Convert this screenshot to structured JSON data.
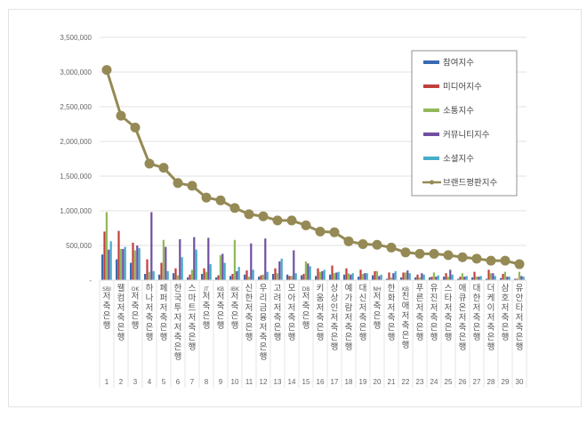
{
  "chart_data": {
    "type": "bar",
    "title": "",
    "xlabel": "",
    "ylabel": "",
    "ylim": [
      0,
      3500000
    ],
    "yticks": [
      "-",
      "500,000",
      "1,000,000",
      "1,500,000",
      "2,000,000",
      "2,500,000",
      "3,000,000",
      "3,500,000"
    ],
    "ytick_values": [
      0,
      500000,
      1000000,
      1500000,
      2000000,
      2500000,
      3000000,
      3500000
    ],
    "grid": true,
    "legend_position": "right-inside-top",
    "ranks": [
      "1",
      "2",
      "3",
      "4",
      "5",
      "6",
      "7",
      "8",
      "9",
      "10",
      "11",
      "12",
      "13",
      "14",
      "15",
      "16",
      "17",
      "18",
      "19",
      "20",
      "21",
      "22",
      "23",
      "24",
      "25",
      "26",
      "27",
      "28",
      "29",
      "30"
    ],
    "categories": [
      "SBI저축은행",
      "웰컴저축은행",
      "OK저축은행",
      "하나저축은행",
      "페퍼저축은행",
      "한국투자저축은행",
      "스마트저축은행",
      "JT저축은행",
      "KB저축은행",
      "IBK저축은행",
      "신한저축은행",
      "우리금융저축은행",
      "고려저축은행",
      "모아저축은행",
      "DB저축은행",
      "키움저축은행",
      "상상인저축은행",
      "예가람저축은행",
      "대신저축은행",
      "NH저축은행",
      "한화저축은행",
      "KB친애저축은행",
      "푸른저축은행",
      "유진저축은행",
      "스타저축은행",
      "애큐온저축은행",
      "대한저축은행",
      "더케이저축은행",
      "삼호저축은행",
      "유안타저축은행"
    ],
    "series": [
      {
        "name": "참여지수",
        "color": "#3a6ab0",
        "kind": "bar",
        "values": [
          370000,
          300000,
          250000,
          90000,
          80000,
          100000,
          40000,
          90000,
          40000,
          60000,
          80000,
          50000,
          90000,
          80000,
          70000,
          60000,
          80000,
          80000,
          50000,
          70000,
          20000,
          40000,
          40000,
          40000,
          50000,
          20000,
          40000,
          20000,
          30000,
          20000
        ]
      },
      {
        "name": "미디어지수",
        "color": "#c0403c",
        "kind": "bar",
        "values": [
          700000,
          710000,
          540000,
          300000,
          250000,
          170000,
          80000,
          170000,
          70000,
          90000,
          140000,
          70000,
          170000,
          60000,
          90000,
          170000,
          210000,
          170000,
          150000,
          130000,
          110000,
          110000,
          80000,
          50000,
          100000,
          50000,
          120000,
          150000,
          90000,
          20000
        ]
      },
      {
        "name": "소통지수",
        "color": "#93b85a",
        "kind": "bar",
        "values": [
          980000,
          450000,
          430000,
          120000,
          580000,
          70000,
          150000,
          120000,
          360000,
          580000,
          50000,
          80000,
          100000,
          60000,
          270000,
          120000,
          100000,
          100000,
          90000,
          130000,
          40000,
          110000,
          40000,
          110000,
          50000,
          100000,
          50000,
          100000,
          120000,
          120000
        ]
      },
      {
        "name": "커뮤니티지수",
        "color": "#7050a0",
        "kind": "bar",
        "values": [
          440000,
          450000,
          500000,
          980000,
          480000,
          590000,
          620000,
          610000,
          380000,
          130000,
          530000,
          600000,
          270000,
          430000,
          240000,
          130000,
          110000,
          80000,
          100000,
          60000,
          100000,
          140000,
          100000,
          50000,
          150000,
          50000,
          50000,
          100000,
          50000,
          60000
        ]
      },
      {
        "name": "소셜지수",
        "color": "#45aecb",
        "kind": "bar",
        "values": [
          560000,
          480000,
          460000,
          130000,
          130000,
          330000,
          440000,
          230000,
          250000,
          190000,
          150000,
          120000,
          310000,
          100000,
          200000,
          150000,
          120000,
          100000,
          100000,
          80000,
          130000,
          100000,
          80000,
          70000,
          80000,
          60000,
          60000,
          60000,
          50000,
          50000
        ]
      },
      {
        "name": "브랜드평판지수",
        "color": "#958a55",
        "kind": "line",
        "values": [
          3030000,
          2370000,
          2200000,
          1680000,
          1620000,
          1400000,
          1360000,
          1190000,
          1150000,
          1040000,
          950000,
          920000,
          860000,
          860000,
          790000,
          700000,
          690000,
          560000,
          520000,
          510000,
          470000,
          400000,
          380000,
          380000,
          360000,
          330000,
          310000,
          280000,
          280000,
          230000
        ]
      }
    ]
  },
  "legend": {
    "items": [
      {
        "label": "참여지수",
        "color": "#3a6ab0",
        "type": "bar"
      },
      {
        "label": "미디어지수",
        "color": "#c0403c",
        "type": "bar"
      },
      {
        "label": "소통지수",
        "color": "#93b85a",
        "type": "bar"
      },
      {
        "label": "커뮤니티지수",
        "color": "#7050a0",
        "type": "bar"
      },
      {
        "label": "소셜지수",
        "color": "#45aecb",
        "type": "bar"
      },
      {
        "label": "브랜드평판지수",
        "color": "#958a55",
        "type": "line"
      }
    ]
  }
}
